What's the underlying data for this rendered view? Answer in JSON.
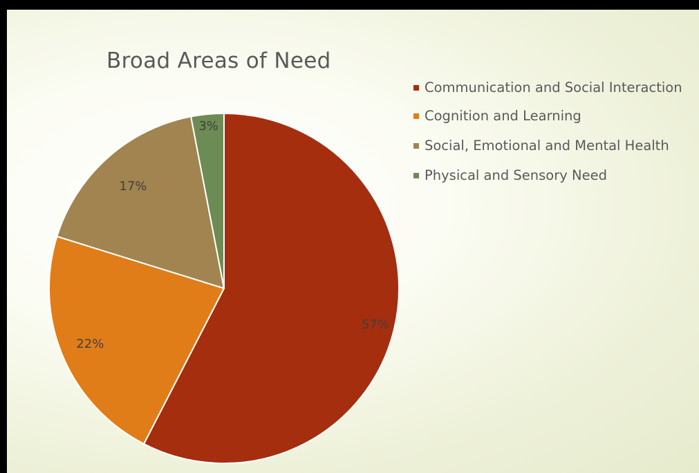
{
  "chart_data": {
    "type": "pie",
    "title": "Broad Areas of Need",
    "slices": [
      {
        "name": "Communication and Social Interaction",
        "value": 57,
        "label": "57%",
        "color": "#a52e0e"
      },
      {
        "name": "Cognition and Learning",
        "value": 22,
        "label": "22%",
        "color": "#e07d18"
      },
      {
        "name": "Social, Emotional and Mental Health",
        "value": 17,
        "label": "17%",
        "color": "#a1844f"
      },
      {
        "name": "Physical and Sensory Need",
        "value": 3,
        "label": "3%",
        "color": "#6d8b54"
      }
    ],
    "legend_position": "right",
    "start_angle_deg": 0,
    "direction": "clockwise"
  },
  "colors": {
    "background": "#ffffff",
    "frame_border": "#000000",
    "text": "#595959",
    "slice_separator": "#ffffff"
  }
}
